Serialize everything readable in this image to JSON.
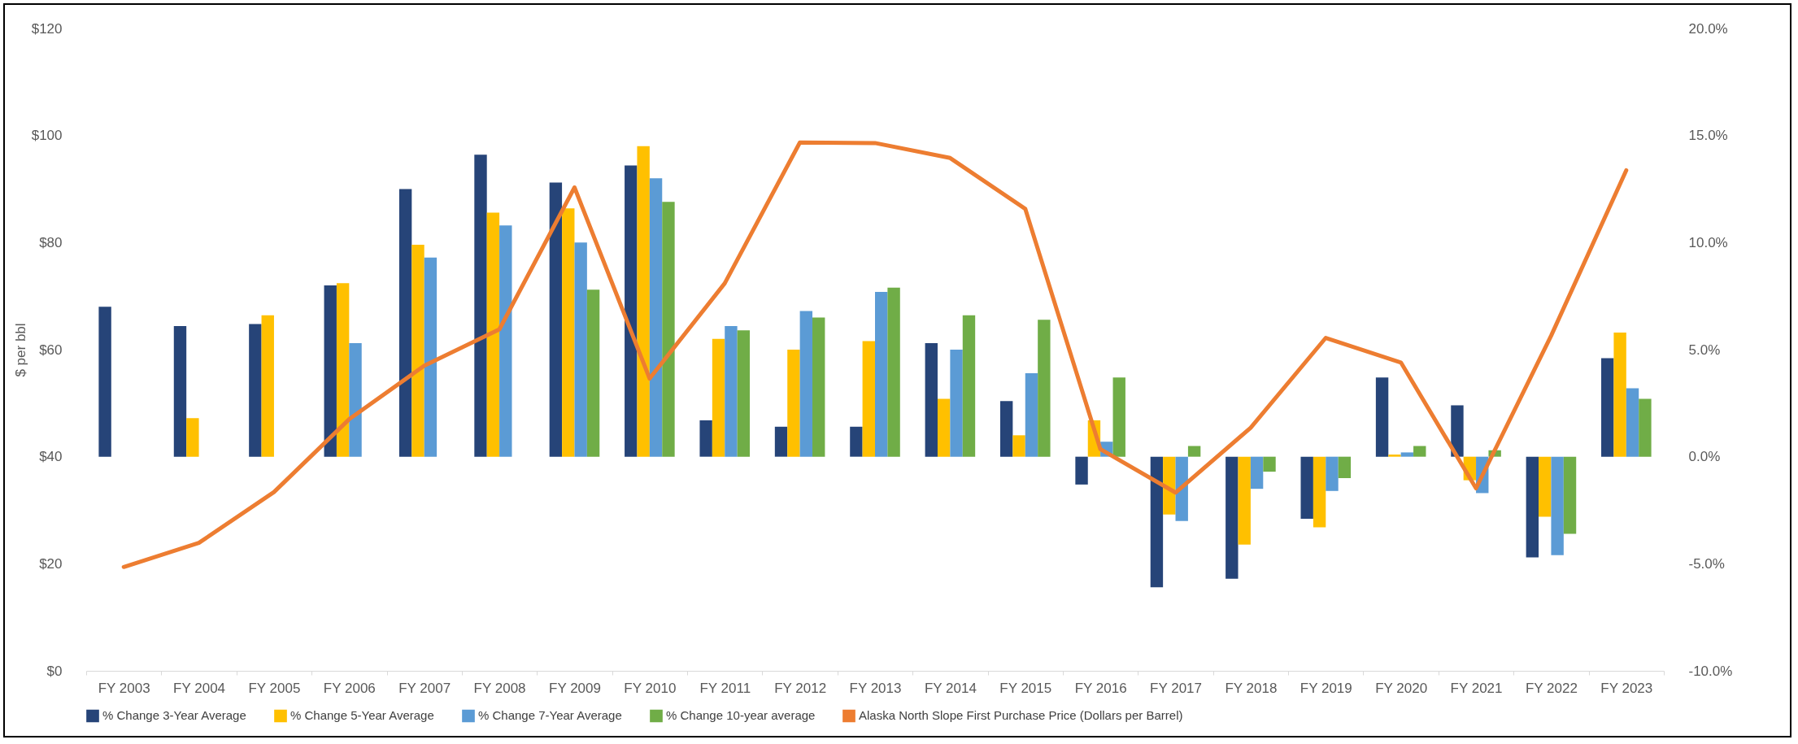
{
  "chart_data": {
    "type": "bar",
    "ylabel": "$ per bbl",
    "legend": "bottom",
    "grid": false,
    "categories": [
      "FY 2003",
      "FY 2004",
      "FY 2005",
      "FY 2006",
      "FY 2007",
      "FY 2008",
      "FY 2009",
      "FY 2010",
      "FY 2011",
      "FY 2012",
      "FY 2013",
      "FY 2014",
      "FY 2015",
      "FY 2016",
      "FY 2017",
      "FY 2018",
      "FY 2019",
      "FY 2020",
      "FY 2021",
      "FY 2022",
      "FY 2023"
    ],
    "ylim": [
      0,
      120
    ],
    "yticks": [
      {
        "value": 0,
        "label": "$0"
      },
      {
        "value": 20,
        "label": "$20"
      },
      {
        "value": 40,
        "label": "$40"
      },
      {
        "value": 60,
        "label": "$60"
      },
      {
        "value": 80,
        "label": "$80"
      },
      {
        "value": 100,
        "label": "$100"
      },
      {
        "value": 120,
        "label": "$120"
      }
    ],
    "y2lim": [
      -10,
      20
    ],
    "y2ticks": [
      {
        "value": -10,
        "label": "-10.0%"
      },
      {
        "value": -5,
        "label": "-5.0%"
      },
      {
        "value": 0,
        "label": "0.0%"
      },
      {
        "value": 5,
        "label": "5.0%"
      },
      {
        "value": 10,
        "label": "10.0%"
      },
      {
        "value": 15,
        "label": "15.0%"
      },
      {
        "value": 20,
        "label": "20.0%"
      }
    ],
    "series": [
      {
        "name": "% Change 3-Year Average",
        "color": "#264478",
        "axis": "y2",
        "values": [
          7.0,
          6.1,
          6.2,
          8.0,
          12.5,
          14.1,
          12.8,
          13.6,
          1.7,
          1.4,
          1.4,
          5.3,
          2.6,
          -1.3,
          -6.1,
          -5.7,
          -2.9,
          3.7,
          2.4,
          -4.7,
          4.6
        ]
      },
      {
        "name": "% Change 5-Year Average",
        "color": "#ffc000",
        "axis": "y2",
        "values": [
          null,
          1.8,
          6.6,
          8.1,
          9.9,
          11.4,
          11.6,
          14.5,
          5.5,
          5.0,
          5.4,
          2.7,
          1.0,
          1.7,
          -2.7,
          -4.1,
          -3.3,
          0.1,
          -1.1,
          -2.8,
          5.8
        ]
      },
      {
        "name": "% Change 7-Year Average",
        "color": "#5b9bd5",
        "axis": "y2",
        "values": [
          null,
          null,
          null,
          5.3,
          9.3,
          10.8,
          10.0,
          13.0,
          6.1,
          6.8,
          7.7,
          5.0,
          3.9,
          0.7,
          -3.0,
          -1.5,
          -1.6,
          0.2,
          -1.7,
          -4.6,
          3.2
        ]
      },
      {
        "name": "% Change 10-year average",
        "color": "#70ad47",
        "axis": "y2",
        "values": [
          null,
          null,
          null,
          null,
          null,
          null,
          7.8,
          11.9,
          5.9,
          6.5,
          7.9,
          6.6,
          6.4,
          3.7,
          0.5,
          -0.7,
          -1.0,
          0.5,
          0.3,
          -3.6,
          2.7
        ]
      },
      {
        "name": "Alaska North Slope First Purchase Price (Dollars per Barrel)",
        "type": "line",
        "color": "#ed7d31",
        "values": [
          19.4,
          23.9,
          33.4,
          47.0,
          57.0,
          63.8,
          90.3,
          54.6,
          72.4,
          98.7,
          98.6,
          95.8,
          86.3,
          41.4,
          33.3,
          45.4,
          62.2,
          57.6,
          34.1,
          62.6,
          93.5
        ]
      }
    ]
  }
}
